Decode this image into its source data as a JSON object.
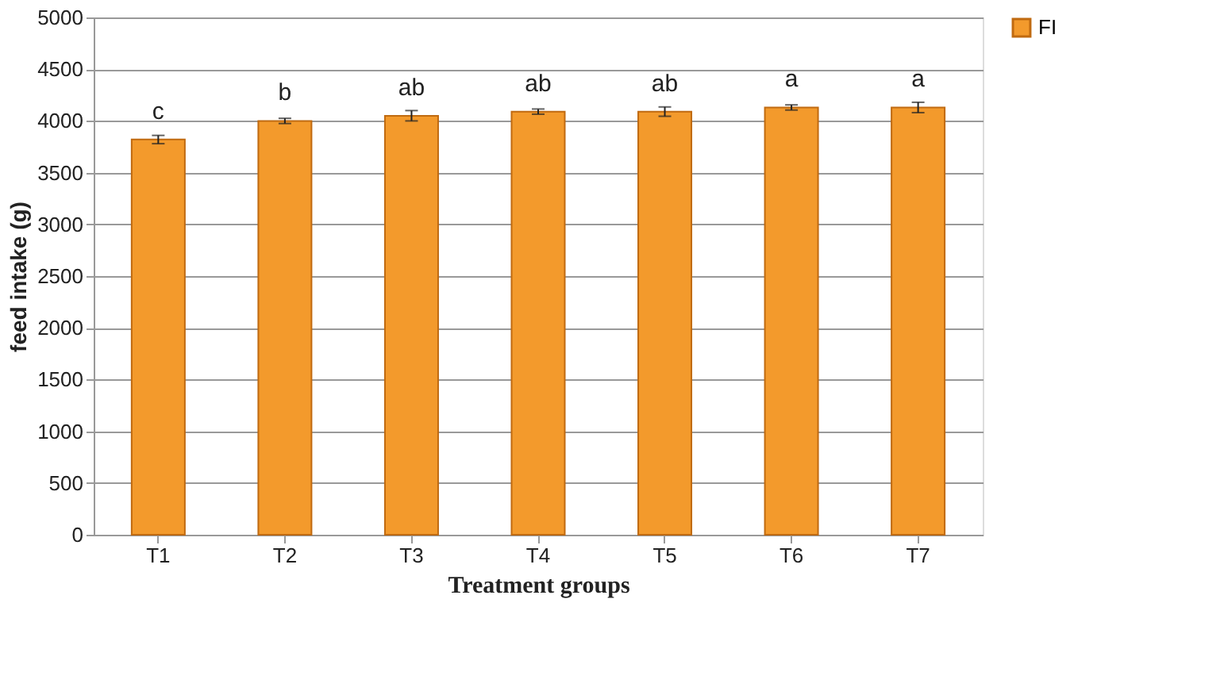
{
  "chart_data": {
    "type": "bar",
    "xlabel": "Treatment groups",
    "ylabel": "feed intake (g)",
    "categories": [
      "T1",
      "T2",
      "T3",
      "T4",
      "T5",
      "T6",
      "T7"
    ],
    "series": [
      {
        "name": "FI",
        "color": "#f39a2c",
        "values": [
          3820,
          4000,
          4050,
          4090,
          4090,
          4130,
          4130
        ],
        "errors": [
          40,
          25,
          50,
          25,
          45,
          25,
          50
        ]
      }
    ],
    "ylim": [
      0,
      5000
    ],
    "yticks": [
      0,
      500,
      1000,
      1500,
      2000,
      2500,
      3000,
      3500,
      4000,
      4500,
      5000
    ],
    "grid": "y",
    "legend": "right",
    "annotations": [
      {
        "text": "c",
        "x": "T1",
        "y": 3820
      },
      {
        "text": "b",
        "x": "T2",
        "y": 4000
      },
      {
        "text": "ab",
        "x": "T3",
        "y": 4050
      },
      {
        "text": "ab",
        "x": "T4",
        "y": 4090
      },
      {
        "text": "ab",
        "x": "T5",
        "y": 4090
      },
      {
        "text": "a",
        "x": "T6",
        "y": 4130
      },
      {
        "text": "a",
        "x": "T7",
        "y": 4130
      }
    ]
  }
}
